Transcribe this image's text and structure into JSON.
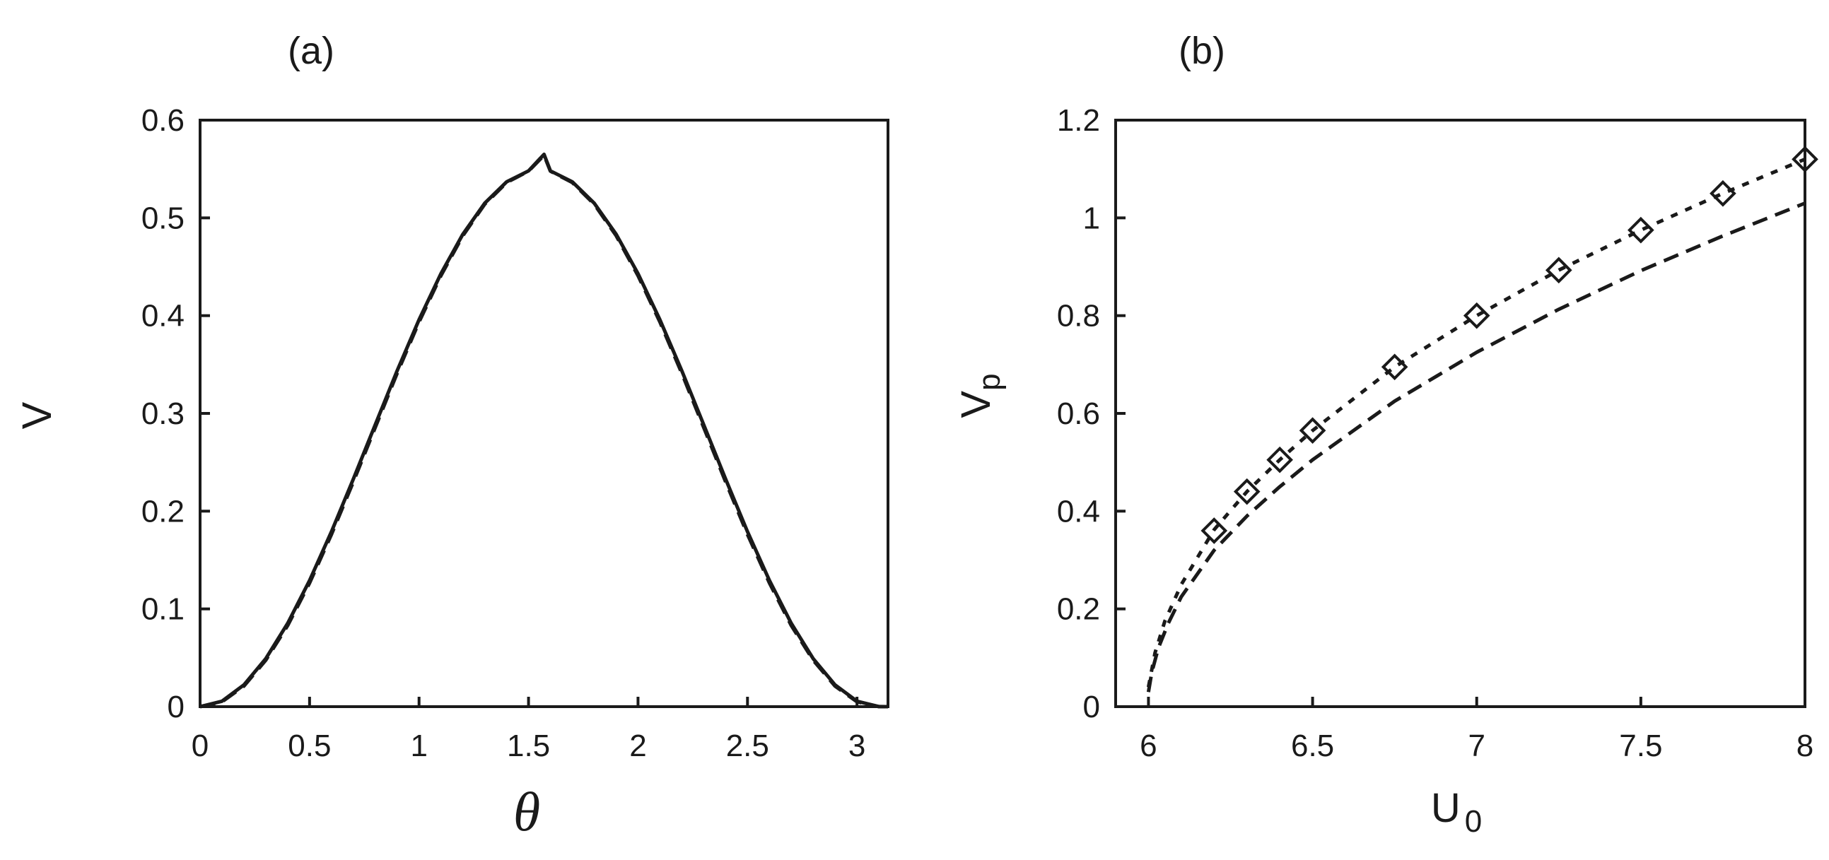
{
  "chart_data": [
    {
      "type": "line",
      "panel_label": "(a)",
      "xlabel": "θ",
      "ylabel": "V",
      "xlim": [
        0,
        3.14159
      ],
      "ylim": [
        0,
        0.6
      ],
      "xticks": [
        "0",
        "0.5",
        "1",
        "1.5",
        "2",
        "2.5",
        "3"
      ],
      "yticks": [
        "0",
        "0.1",
        "0.2",
        "0.3",
        "0.4",
        "0.5",
        "0.6"
      ],
      "grid": false,
      "series": [
        {
          "style": "solid",
          "color": "#1a1a1a",
          "x": [
            0,
            0.1,
            0.2,
            0.3,
            0.4,
            0.5,
            0.6,
            0.7,
            0.8,
            0.9,
            1.0,
            1.1,
            1.2,
            1.3,
            1.4,
            1.5,
            1.5708,
            1.6,
            1.7,
            1.8,
            1.9,
            2.0,
            2.1,
            2.2,
            2.3,
            2.4,
            2.5,
            2.6,
            2.7,
            2.8,
            2.9,
            3.0,
            3.1,
            3.1416
          ],
          "y": [
            0,
            0.0056,
            0.0222,
            0.0491,
            0.0852,
            0.1291,
            0.179,
            0.2329,
            0.2885,
            0.3436,
            0.3958,
            0.443,
            0.4833,
            0.515,
            0.5369,
            0.5481,
            0.565,
            0.5481,
            0.5369,
            0.515,
            0.4833,
            0.443,
            0.3958,
            0.3436,
            0.2885,
            0.2329,
            0.179,
            0.1291,
            0.0852,
            0.0491,
            0.0222,
            0.0056,
            0.0001,
            0
          ]
        },
        {
          "style": "dashed",
          "color": "#1a1a1a",
          "x": [
            0,
            0.1,
            0.2,
            0.3,
            0.4,
            0.5,
            0.6,
            0.7,
            0.8,
            0.9,
            1.0,
            1.1,
            1.2,
            1.3,
            1.4,
            1.5,
            1.5708,
            1.6,
            1.7,
            1.8,
            1.9,
            2.0,
            2.1,
            2.2,
            2.3,
            2.4,
            2.5,
            2.6,
            2.7,
            2.8,
            2.9,
            3.0,
            3.1,
            3.1416
          ],
          "y": [
            0,
            0.005,
            0.021,
            0.0475,
            0.083,
            0.1265,
            0.1762,
            0.23,
            0.2857,
            0.341,
            0.3935,
            0.441,
            0.4818,
            0.514,
            0.5362,
            0.5478,
            0.564,
            0.5478,
            0.5362,
            0.514,
            0.4818,
            0.441,
            0.3935,
            0.341,
            0.2857,
            0.23,
            0.1762,
            0.1265,
            0.083,
            0.0475,
            0.021,
            0.005,
            0.0001,
            0
          ]
        }
      ]
    },
    {
      "type": "line",
      "panel_label": "(b)",
      "xlabel": "U",
      "xlabel_sub": "0",
      "ylabel": "V",
      "ylabel_sub": "p",
      "xlim": [
        5.9,
        8.0
      ],
      "ylim": [
        0,
        1.2
      ],
      "xticks": [
        "6",
        "6.5",
        "7",
        "7.5",
        "8"
      ],
      "yticks": [
        "0",
        "0.2",
        "0.4",
        "0.6",
        "0.8",
        "1",
        "1.2"
      ],
      "grid": false,
      "series": [
        {
          "style": "dotted",
          "color": "#1a1a1a",
          "x": [
            6.0,
            6.02,
            6.05,
            6.1,
            6.2,
            6.3,
            6.4,
            6.5,
            6.75,
            7.0,
            7.25,
            7.5,
            7.75,
            8.0
          ],
          "y": [
            0.04,
            0.11,
            0.175,
            0.25,
            0.362,
            0.44,
            0.505,
            0.565,
            0.695,
            0.8,
            0.893,
            0.975,
            1.05,
            1.12
          ]
        },
        {
          "style": "dashed",
          "color": "#1a1a1a",
          "x": [
            6.0,
            6.01,
            6.03,
            6.06,
            6.1,
            6.2,
            6.3,
            6.4,
            6.5,
            6.75,
            7.0,
            7.25,
            7.5,
            7.75,
            8.0
          ],
          "y": [
            0.03,
            0.07,
            0.12,
            0.17,
            0.225,
            0.32,
            0.39,
            0.45,
            0.505,
            0.625,
            0.725,
            0.813,
            0.892,
            0.963,
            1.03
          ]
        },
        {
          "style": "markers",
          "marker": "diamond",
          "color": "#1a1a1a",
          "x": [
            6.2,
            6.3,
            6.4,
            6.5,
            6.75,
            7.0,
            7.25,
            7.5,
            7.75,
            8.0
          ],
          "y": [
            0.36,
            0.44,
            0.505,
            0.565,
            0.695,
            0.8,
            0.893,
            0.975,
            1.05,
            1.12
          ]
        }
      ]
    }
  ]
}
